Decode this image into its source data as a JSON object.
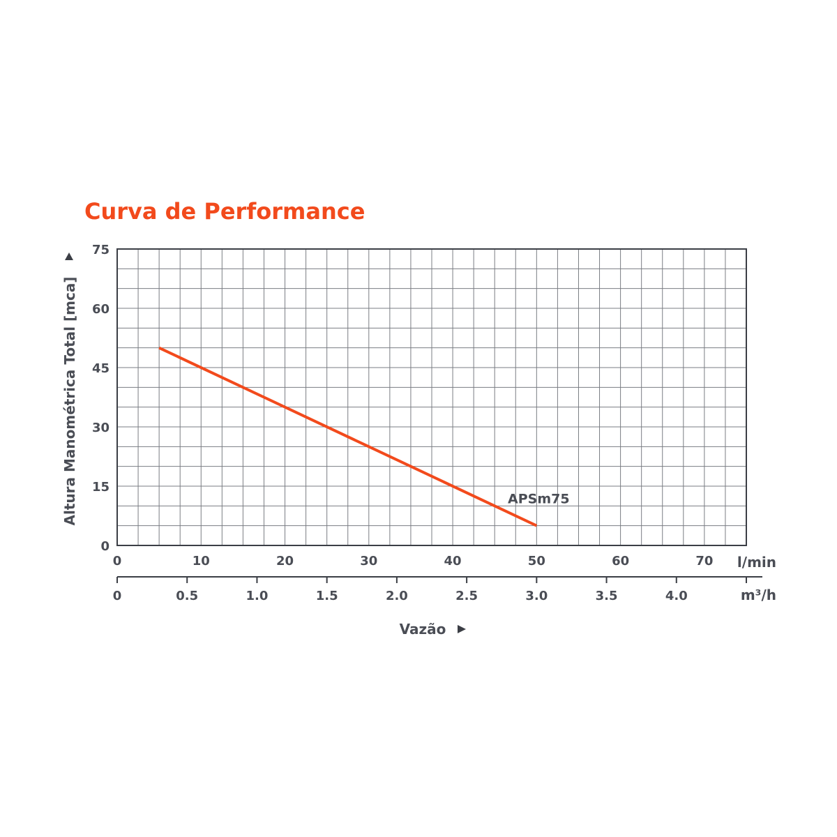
{
  "chart_data": {
    "type": "line",
    "title": "Curva de Performance",
    "ylabel": "Altura Manométrica Total [mca]",
    "xlabel": "Vazão",
    "ylim": [
      0,
      75
    ],
    "xlim": [
      0,
      75
    ],
    "grid": true,
    "y_ticks": [
      "0",
      "15",
      "30",
      "45",
      "60",
      "75"
    ],
    "x_ticks_primary": [
      "0",
      "10",
      "20",
      "30",
      "40",
      "50",
      "60",
      "70"
    ],
    "x_unit_primary": "l/min",
    "x_ticks_secondary": [
      "0",
      "0.5",
      "1.0",
      "1.5",
      "2.0",
      "2.5",
      "3.0",
      "3.5",
      "4.0"
    ],
    "x_unit_secondary": "m³/h",
    "series": [
      {
        "name": "APSm75",
        "x": [
          5,
          50
        ],
        "y": [
          50,
          5
        ]
      }
    ]
  },
  "colors": {
    "accent": "#f24a1c",
    "axis": "#3b3e45",
    "grid": "#7a7d83",
    "text": "#4a4d55"
  }
}
